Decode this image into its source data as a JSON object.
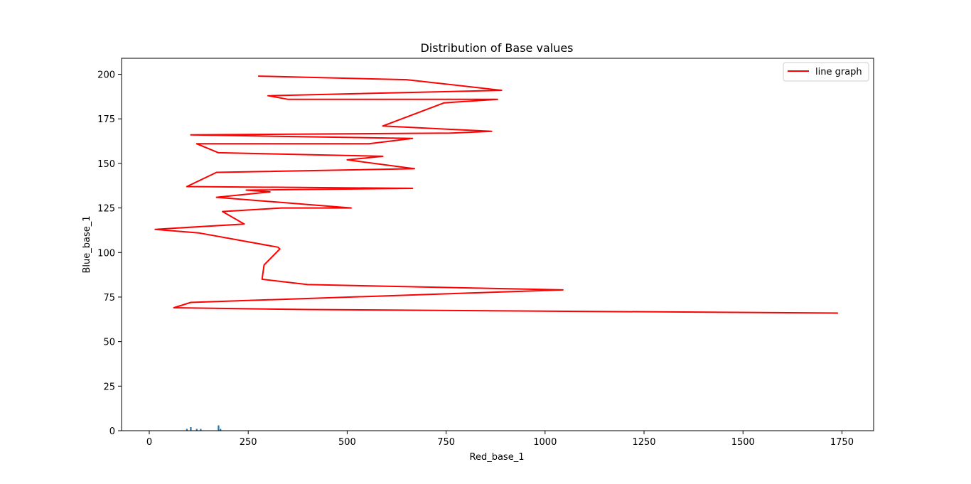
{
  "chart_data": {
    "type": "line",
    "title": "Distribution of Base values",
    "xlabel": "Red_base_1",
    "ylabel": "Blue_base_1",
    "xlim": [
      -70,
      1830
    ],
    "ylim": [
      0,
      209
    ],
    "xticks": [
      0,
      250,
      500,
      750,
      1000,
      1250,
      1500,
      1750
    ],
    "yticks": [
      0,
      25,
      50,
      75,
      100,
      125,
      150,
      175,
      200
    ],
    "grid": false,
    "legend": {
      "placement": "top-right",
      "entries": [
        "line graph"
      ]
    },
    "series": [
      {
        "name": "line graph",
        "color": "#ff0000",
        "points": [
          [
            1740,
            66
          ],
          [
            400,
            68
          ],
          [
            62,
            69
          ],
          [
            105,
            72
          ],
          [
            1045,
            79
          ],
          [
            400,
            82
          ],
          [
            285,
            85
          ],
          [
            290,
            93
          ],
          [
            330,
            102
          ],
          [
            325,
            103
          ],
          [
            125,
            111
          ],
          [
            15,
            113
          ],
          [
            240,
            116
          ],
          [
            185,
            123
          ],
          [
            335,
            125
          ],
          [
            510,
            125
          ],
          [
            170,
            131
          ],
          [
            305,
            134
          ],
          [
            245,
            135
          ],
          [
            665,
            136
          ],
          [
            95,
            137
          ],
          [
            170,
            145
          ],
          [
            670,
            147
          ],
          [
            500,
            152
          ],
          [
            590,
            154
          ],
          [
            175,
            156
          ],
          [
            120,
            161
          ],
          [
            555,
            161
          ],
          [
            665,
            164
          ],
          [
            105,
            166
          ],
          [
            760,
            167
          ],
          [
            865,
            168
          ],
          [
            590,
            171
          ],
          [
            745,
            184
          ],
          [
            880,
            186
          ],
          [
            350,
            186
          ],
          [
            300,
            188
          ],
          [
            890,
            191
          ],
          [
            650,
            197
          ],
          [
            275,
            199
          ]
        ]
      },
      {
        "name": "",
        "type": "bar",
        "color": "#1f77b4",
        "x": [
          95,
          105,
          120,
          130,
          175,
          180
        ],
        "values": [
          1,
          2,
          1,
          1,
          3,
          1
        ]
      }
    ]
  }
}
